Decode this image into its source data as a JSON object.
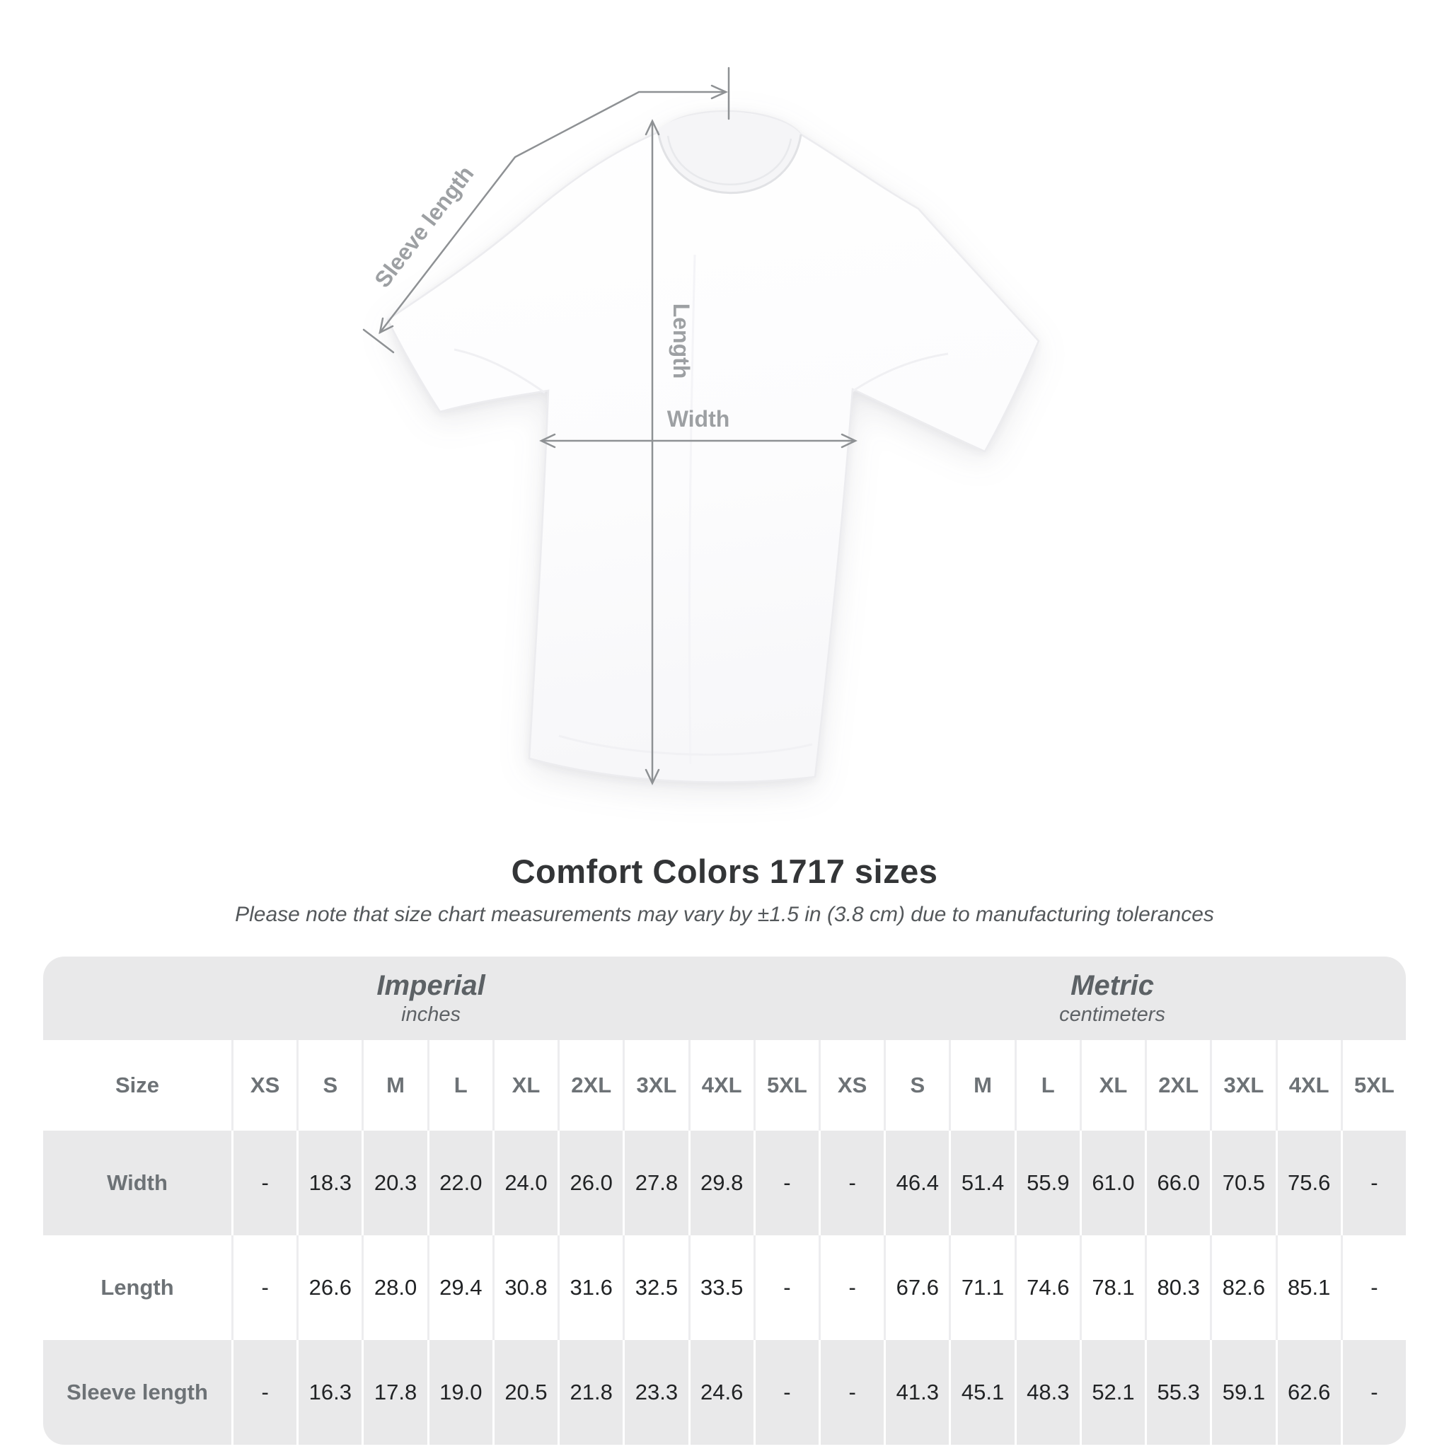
{
  "page": {
    "title": "Comfort Colors 1717 sizes",
    "subtitle": "Please note that size chart measurements may vary by ±1.5 in (3.8 cm) due to manufacturing tolerances"
  },
  "diagram_labels": {
    "sleeve_length": "Sleeve length",
    "length": "Length",
    "width": "Width"
  },
  "chart_data": {
    "type": "table",
    "title": "Comfort Colors 1717 sizes",
    "unit_sections": [
      {
        "label": "Imperial",
        "unit": "inches"
      },
      {
        "label": "Metric",
        "unit": "centimeters"
      }
    ],
    "size_column_header": "Size",
    "size_headers": [
      "XS",
      "S",
      "M",
      "L",
      "XL",
      "2XL",
      "3XL",
      "4XL",
      "5XL"
    ],
    "rows": [
      {
        "label": "Width",
        "imperial": [
          "-",
          "18.3",
          "20.3",
          "22.0",
          "24.0",
          "26.0",
          "27.8",
          "29.8",
          "-"
        ],
        "metric": [
          "-",
          "46.4",
          "51.4",
          "55.9",
          "61.0",
          "66.0",
          "70.5",
          "75.6",
          "-"
        ]
      },
      {
        "label": "Length",
        "imperial": [
          "-",
          "26.6",
          "28.0",
          "29.4",
          "30.8",
          "31.6",
          "32.5",
          "33.5",
          "-"
        ],
        "metric": [
          "-",
          "67.6",
          "71.1",
          "74.6",
          "78.1",
          "80.3",
          "82.6",
          "85.1",
          "-"
        ]
      },
      {
        "label": "Sleeve length",
        "imperial": [
          "-",
          "16.3",
          "17.8",
          "19.0",
          "20.5",
          "21.8",
          "23.3",
          "24.6",
          "-"
        ],
        "metric": [
          "-",
          "41.3",
          "45.1",
          "48.3",
          "52.1",
          "55.3",
          "59.1",
          "62.6",
          "-"
        ]
      }
    ],
    "layout_hints": {
      "stripe_color": "#e9e9ea",
      "annotation_color": "#8e9194"
    }
  }
}
